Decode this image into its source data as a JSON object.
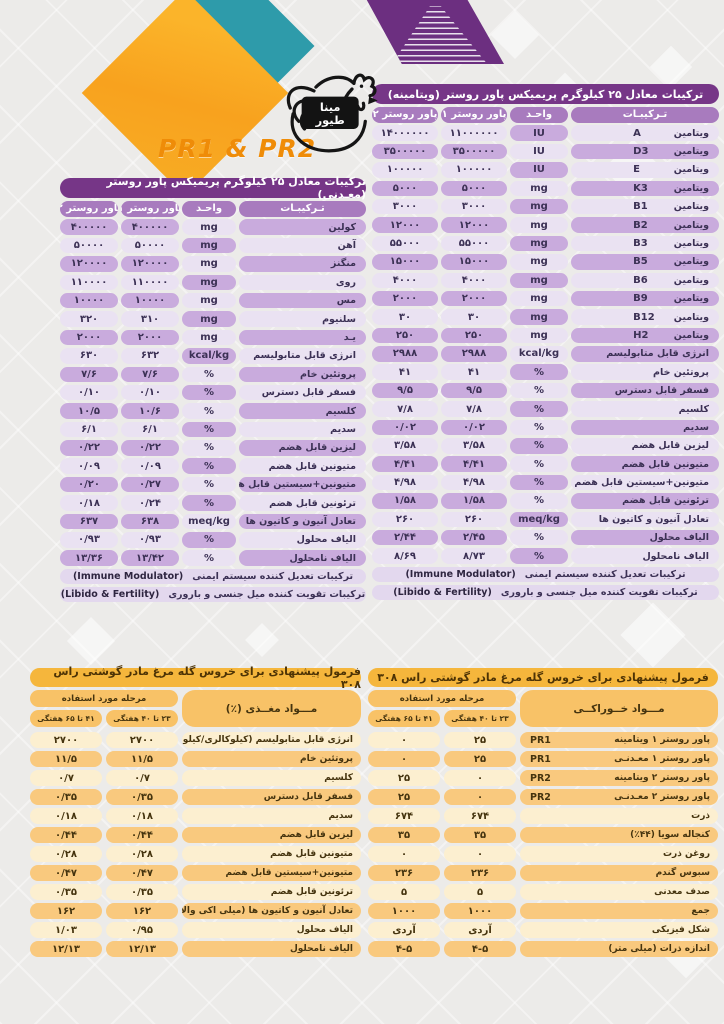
{
  "brand": {
    "tagline": "PR1 & PR2",
    "logo_line1": "مینا",
    "logo_line2": "طیور"
  },
  "colors": {
    "purple_dark": "#763687",
    "purple_header": "#A87BBE",
    "purple_row_light": "#EAE2F2",
    "purple_row_dark": "#C9ABDD",
    "gold_title": "#F5B63C",
    "orange_header": "#F8C267",
    "orange_row_light": "#FCEFD0",
    "orange_row_dark": "#F9C97E",
    "teal_shape": "#2E9BAA",
    "orange_shape": "#F8A21E",
    "ribbon_purple": "#6C2F80"
  },
  "vitamin_table": {
    "title": "ترکیبات معادل ۲۵ کیلوگرم پریمیکس پاور روستر (ویتامینه)",
    "columns": {
      "label": "تـرکیبـات",
      "unit": "واحـد",
      "v1": "پاور روستر ۱",
      "v2": "پاور روستر ۲"
    },
    "sections": [
      {
        "start": "light",
        "rows": [
          {
            "label": "ویتامین",
            "code": "A",
            "unit": "IU",
            "v1": "۱۱۰۰۰۰۰۰",
            "v2": "۱۴۰۰۰۰۰۰"
          },
          {
            "label": "ویتامین",
            "code": "D3",
            "unit": "IU",
            "v1": "۳۵۰۰۰۰۰",
            "v2": "۳۵۰۰۰۰۰"
          },
          {
            "label": "ویتامین",
            "code": "E",
            "unit": "IU",
            "v1": "۱۰۰۰۰۰",
            "v2": "۱۰۰۰۰۰"
          },
          {
            "label": "ویتامین",
            "code": "K3",
            "unit": "mg",
            "v1": "۵۰۰۰",
            "v2": "۵۰۰۰"
          },
          {
            "label": "ویتامین",
            "code": "B1",
            "unit": "mg",
            "v1": "۳۰۰۰",
            "v2": "۳۰۰۰"
          },
          {
            "label": "ویتامین",
            "code": "B2",
            "unit": "mg",
            "v1": "۱۲۰۰۰",
            "v2": "۱۲۰۰۰"
          },
          {
            "label": "ویتامین",
            "code": "B3",
            "unit": "mg",
            "v1": "۵۵۰۰۰",
            "v2": "۵۵۰۰۰"
          },
          {
            "label": "ویتامین",
            "code": "B5",
            "unit": "mg",
            "v1": "۱۵۰۰۰",
            "v2": "۱۵۰۰۰"
          },
          {
            "label": "ویتامین",
            "code": "B6",
            "unit": "mg",
            "v1": "۴۰۰۰",
            "v2": "۴۰۰۰"
          },
          {
            "label": "ویتامین",
            "code": "B9",
            "unit": "mg",
            "v1": "۲۰۰۰",
            "v2": "۲۰۰۰"
          },
          {
            "label": "ویتامین",
            "code": "B12",
            "unit": "mg",
            "v1": "۳۰",
            "v2": "۳۰"
          },
          {
            "label": "ویتامین",
            "code": "H2",
            "unit": "mg",
            "v1": "۲۵۰",
            "v2": "۲۵۰"
          }
        ]
      },
      {
        "start": "dark",
        "rows": [
          {
            "label": "انرژی قابل متابولیسم",
            "unit": "kcal/kg",
            "v1": "۲۹۸۸",
            "v2": "۲۹۸۸"
          },
          {
            "label": "پروتئین خام",
            "unit": "%",
            "v1": "۴۱",
            "v2": "۴۱"
          },
          {
            "label": "فسفر قابل دسترس",
            "unit": "%",
            "v1": "۹/۵",
            "v2": "۹/۵"
          },
          {
            "label": "کلسیم",
            "unit": "%",
            "v1": "۷/۸",
            "v2": "۷/۸"
          },
          {
            "label": "سدیم",
            "unit": "%",
            "v1": "۰/۰۲",
            "v2": "۰/۰۲"
          },
          {
            "label": "لیزین قابل هضم",
            "unit": "%",
            "v1": "۳/۵۸",
            "v2": "۳/۵۸"
          },
          {
            "label": "متیونین قابل هضم",
            "unit": "%",
            "v1": "۴/۴۱",
            "v2": "۴/۴۱"
          },
          {
            "label": "متیونین+سیستین قابل هضم",
            "unit": "%",
            "v1": "۴/۹۸",
            "v2": "۴/۹۸"
          },
          {
            "label": "ترئونین قابل هضم",
            "unit": "%",
            "v1": "۱/۵۸",
            "v2": "۱/۵۸"
          },
          {
            "label": "تعادل آنیون و کاتیون ها",
            "unit": "meq/kg",
            "v1": "۲۶۰",
            "v2": "۲۶۰"
          },
          {
            "label": "الیاف محلول",
            "unit": "%",
            "v1": "۲/۴۵",
            "v2": "۲/۴۴"
          },
          {
            "label": "الیاف نامحلول",
            "unit": "%",
            "v1": "۸/۷۳",
            "v2": "۸/۶۹"
          }
        ]
      }
    ],
    "footers": [
      {
        "fa": "ترکیبات تعدیل کننده سیستم ایمنی",
        "en": "(Immune Modulator)"
      },
      {
        "fa": "ترکیبات تقویت کننده میل جنسی و باروری",
        "en": "(Libido & Fertility)"
      }
    ]
  },
  "mineral_table": {
    "title": "ترکیبات معادل ۲۵ کیلوگرم پریمیکس پاور روستر (معـدنی)",
    "columns": {
      "label": "تـرکیبـات",
      "unit": "واحـد",
      "v1": "پاور روستر ۱",
      "v2": "پاور روستر ۲"
    },
    "sections": [
      {
        "start": "dark",
        "rows": [
          {
            "label": "کولین",
            "unit": "mg",
            "v1": "۴۰۰۰۰۰",
            "v2": "۴۰۰۰۰۰"
          },
          {
            "label": "آهن",
            "unit": "mg",
            "v1": "۵۰۰۰۰",
            "v2": "۵۰۰۰۰"
          },
          {
            "label": "منگنز",
            "unit": "mg",
            "v1": "۱۲۰۰۰۰",
            "v2": "۱۲۰۰۰۰"
          },
          {
            "label": "روی",
            "unit": "mg",
            "v1": "۱۱۰۰۰۰",
            "v2": "۱۱۰۰۰۰"
          },
          {
            "label": "مس",
            "unit": "mg",
            "v1": "۱۰۰۰۰",
            "v2": "۱۰۰۰۰"
          },
          {
            "label": "سلنیوم",
            "unit": "mg",
            "v1": "۳۱۰",
            "v2": "۳۲۰"
          },
          {
            "label": "یـد",
            "unit": "mg",
            "v1": "۲۰۰۰",
            "v2": "۲۰۰۰"
          }
        ]
      },
      {
        "start": "light",
        "rows": [
          {
            "label": "انرژی قابل متابولیسم",
            "unit": "kcal/kg",
            "v1": "۶۳۲",
            "v2": "۶۳۰"
          },
          {
            "label": "پروتئین خام",
            "unit": "%",
            "v1": "۷/۶",
            "v2": "۷/۶"
          },
          {
            "label": "فسفر قابل دسترس",
            "unit": "%",
            "v1": "۰/۱۰",
            "v2": "۰/۱۰"
          },
          {
            "label": "کلسیم",
            "unit": "%",
            "v1": "۱۰/۶",
            "v2": "۱۰/۵"
          },
          {
            "label": "سدیم",
            "unit": "%",
            "v1": "۶/۱",
            "v2": "۶/۱"
          },
          {
            "label": "لیزین قابل هضم",
            "unit": "%",
            "v1": "۰/۲۲",
            "v2": "۰/۲۲"
          },
          {
            "label": "متیونین قابل هضم",
            "unit": "%",
            "v1": "۰/۰۹",
            "v2": "۰/۰۹"
          },
          {
            "label": "متیونین+سیستین قابل هضم",
            "unit": "%",
            "v1": "۰/۲۷",
            "v2": "۰/۲۰"
          },
          {
            "label": "ترئونین قابل هضم",
            "unit": "%",
            "v1": "۰/۲۴",
            "v2": "۰/۱۸"
          },
          {
            "label": "تعادل آنیون و کاتیون ها",
            "unit": "meq/kg",
            "v1": "۶۳۸",
            "v2": "۶۳۷"
          },
          {
            "label": "الیاف محلول",
            "unit": "%",
            "v1": "۰/۹۳",
            "v2": "۰/۹۳"
          },
          {
            "label": "الیاف نامحلول",
            "unit": "%",
            "v1": "۱۳/۴۲",
            "v2": "۱۳/۳۶"
          }
        ]
      }
    ],
    "footers": [
      {
        "fa": "ترکیبات تعدیل کننده سیستم ایمنی",
        "en": "(Immune Modulator)"
      },
      {
        "fa": "ترکیبات تقویت کننده میل جنسی و باروری",
        "en": "(Libido & Fertility)"
      }
    ]
  },
  "formula_feed_table": {
    "title": "فرمول پیشنهادی برای خروس گله مرغ مادر گوشتی راس ۳۰۸",
    "header": {
      "main": "مـــواد خــوراکــی",
      "stage": "مرحله مورد استفاده",
      "week1": "۲۳ تا ۴۰ هفتگی",
      "week2": "۴۱ تا ۶۵ هفتگی"
    },
    "sections": [
      {
        "start": "light",
        "rows": [
          {
            "label": "پاور روستر ۱ ویتامینه",
            "code": "PR1",
            "v1": "۲۵",
            "v2": "۰"
          },
          {
            "label": "پاور روستر ۱ معـدنـی",
            "code": "PR1",
            "v1": "۲۵",
            "v2": "۰"
          },
          {
            "label": "پاور روستر ۲ ویتامینه",
            "code": "PR2",
            "v1": "۰",
            "v2": "۲۵"
          },
          {
            "label": "پاور روستر ۲ معـدنـی",
            "code": "PR2",
            "v1": "۰",
            "v2": "۲۵"
          },
          {
            "label": "ذرت",
            "v1": "۶۷۴",
            "v2": "۶۷۴"
          },
          {
            "label": "کنجاله سویا (۴۴٪)",
            "v1": "۳۵",
            "v2": "۳۵"
          },
          {
            "label": "روغن ذرت",
            "v1": "۰",
            "v2": "۰"
          },
          {
            "label": "سبوس گندم",
            "v1": "۲۳۶",
            "v2": "۲۳۶"
          },
          {
            "label": "صدف معدنی",
            "v1": "۵",
            "v2": "۵"
          },
          {
            "label": "جمع",
            "v1": "۱۰۰۰",
            "v2": "۱۰۰۰"
          },
          {
            "label": "شکل فیزیکی",
            "v1": "آردی",
            "v2": "آردی"
          },
          {
            "label": "اندازه ذرات (میلی متر)",
            "v1": "۴-۵",
            "v2": "۴-۵"
          }
        ]
      }
    ]
  },
  "formula_nutrient_table": {
    "title": "فرمول پیشنهادی برای خروس گله مرغ مادر گوشتی راس ۳۰۸",
    "header": {
      "main": "مـــواد مغــذی (٪)",
      "stage": "مرحله مورد استفاده",
      "week1": "۲۳ تا ۴۰ هفتگی",
      "week2": "۴۱ تا ۶۵ هفتگی"
    },
    "sections": [
      {
        "start": "light",
        "rows": [
          {
            "label": "انرژی قابل متابولیسم (کیلوکالری/کیلوگرم)",
            "v1": "۲۷۰۰",
            "v2": "۲۷۰۰"
          },
          {
            "label": "پروتئین خام",
            "v1": "۱۱/۵",
            "v2": "۱۱/۵"
          },
          {
            "label": "کلسیم",
            "v1": "۰/۷",
            "v2": "۰/۷"
          },
          {
            "label": "فسفر قابل دسترس",
            "v1": "۰/۳۵",
            "v2": "۰/۳۵"
          },
          {
            "label": "سدیم",
            "v1": "۰/۱۸",
            "v2": "۰/۱۸"
          },
          {
            "label": "لیزین قابل هضم",
            "v1": "۰/۴۴",
            "v2": "۰/۴۴"
          },
          {
            "label": "متیونین قابل هضم",
            "v1": "۰/۲۸",
            "v2": "۰/۲۸"
          },
          {
            "label": "متیونین+سیستین قابل هضم",
            "v1": "۰/۴۷",
            "v2": "۰/۴۷"
          },
          {
            "label": "ترئونین قابل هضم",
            "v1": "۰/۳۵",
            "v2": "۰/۳۵"
          },
          {
            "label": "تعادل آنیون و کاتیون ها (میلی اکی والان/کیلوگرم)",
            "v1": "۱۶۲",
            "v2": "۱۶۲"
          },
          {
            "label": "الیاف محلول",
            "v1": "۰/۹۵",
            "v2": "۱/۰۳"
          },
          {
            "label": "الیاف نامحلول",
            "v1": "۱۲/۱۳",
            "v2": "۱۲/۱۳"
          }
        ]
      }
    ]
  }
}
